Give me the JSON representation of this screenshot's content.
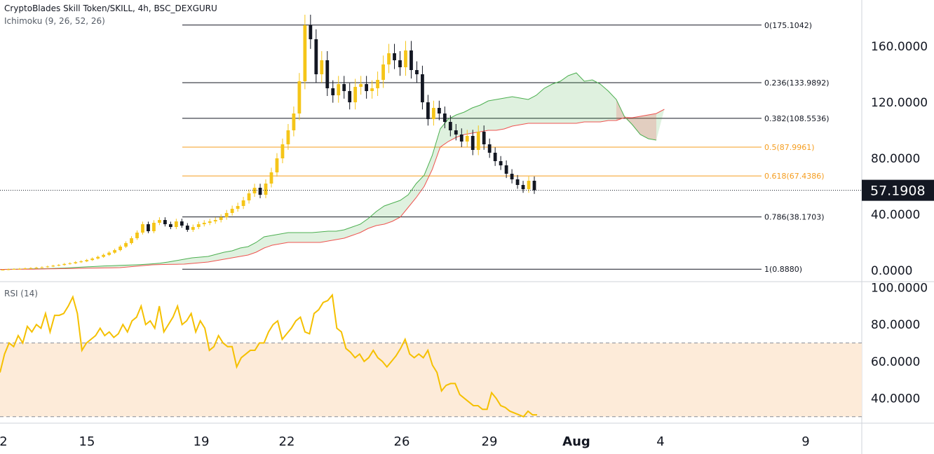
{
  "header": {
    "title": "CryptoBlades Skill Token/SKILL, 4h, BSC_DEXGURU",
    "indicator": "Ichimoku (9, 26, 52, 26)",
    "rsi_label": "RSI (14)"
  },
  "colors": {
    "bull": "#f5c518",
    "bear": "#131722",
    "cloud_green": "#4caf50",
    "cloud_red": "#ef5350",
    "fib_black": "#131722",
    "fib_orange": "#f59d1f",
    "rsi_line": "#f5c000",
    "rsi_band": "#fdebd9"
  },
  "chart_data": [
    {
      "type": "candlestick",
      "title": "CryptoBlades Skill Token/SKILL, 4h, BSC_DEXGURU",
      "last_price": "57.1908",
      "y_ticks": [
        "160.0000",
        "120.0000",
        "80.0000",
        "40.0000",
        "0.0000"
      ],
      "ylim": [
        -6,
        188
      ],
      "x_ticks": [
        "2",
        "15",
        "19",
        "22",
        "26",
        "29",
        "Aug",
        "4",
        "9"
      ],
      "fib_levels": [
        {
          "label": "0(175.1042)",
          "value": 175.1042
        },
        {
          "label": "0.236(133.9892)",
          "value": 133.9892
        },
        {
          "label": "0.382(108.5536)",
          "value": 108.5536
        },
        {
          "label": "0.5(87.9961)",
          "value": 87.9961
        },
        {
          "label": "0.618(67.4386)",
          "value": 67.4386
        },
        {
          "label": "0.786(38.1703)",
          "value": 38.1703
        },
        {
          "label": "1(0.8880)",
          "value": 0.888
        }
      ],
      "closes": [
        0.5,
        0.8,
        1,
        1.2,
        1.5,
        1.7,
        2,
        2.3,
        2.8,
        3.4,
        3.9,
        4.6,
        5.1,
        5.9,
        6.5,
        7.4,
        8.5,
        9.7,
        11.1,
        12.7,
        14.5,
        17,
        19.5,
        23,
        27,
        33,
        28,
        34,
        36,
        33,
        31,
        35,
        32,
        29,
        31,
        33,
        34,
        35,
        36,
        38,
        41,
        44,
        46,
        50,
        55,
        59,
        54,
        62,
        70,
        80,
        90,
        100,
        112,
        135,
        175,
        165,
        140,
        150,
        130,
        125,
        133,
        128,
        120,
        131,
        133,
        128,
        130,
        136,
        147,
        155,
        150,
        145,
        157,
        143,
        140,
        120,
        108,
        116,
        112,
        106,
        100,
        97,
        92,
        96,
        86,
        99,
        90,
        84,
        78,
        75,
        69,
        65,
        61,
        58,
        64,
        57.2
      ],
      "tenkan_kijun_note": "",
      "cloud": {
        "span_a": [
          0.7,
          0.8,
          0.9,
          1,
          1.1,
          1.2,
          1.3,
          1.5,
          1.7,
          2,
          2.3,
          2.6,
          2.9,
          3.2,
          3.4,
          3.6,
          3.8,
          4,
          4.3,
          4.7,
          5.2,
          6,
          7,
          8,
          9,
          9.5,
          10,
          11.5,
          13,
          14,
          16,
          17,
          20,
          24,
          25,
          26,
          27,
          27,
          27,
          27,
          27.5,
          28,
          28,
          29,
          31,
          33,
          37,
          42,
          46,
          48,
          50,
          54,
          62,
          68,
          82,
          101,
          108,
          111,
          113,
          116,
          118,
          121,
          122,
          123,
          124,
          123,
          122,
          125,
          130,
          133,
          135,
          139,
          141,
          135,
          136,
          133,
          128,
          122,
          110,
          104,
          97,
          94,
          93
        ],
        "span_b": [
          0.7,
          0.75,
          0.8,
          0.85,
          0.9,
          1,
          1.1,
          1.2,
          1.3,
          1.4,
          1.5,
          1.6,
          1.7,
          1.8,
          1.9,
          2,
          2.5,
          3,
          3.5,
          4,
          4.2,
          4.3,
          4.4,
          4.5,
          5,
          5.5,
          6,
          7,
          8,
          9,
          10,
          11,
          13,
          16,
          18,
          19,
          20,
          20,
          20,
          20,
          20,
          21,
          22,
          23,
          25,
          27,
          30,
          32,
          33,
          35,
          38,
          45,
          52,
          60,
          72,
          88,
          92,
          95,
          97,
          98,
          99,
          100,
          100,
          101,
          103,
          104,
          105,
          105,
          105,
          105,
          105,
          105,
          105,
          106,
          106,
          106,
          107,
          107,
          109,
          109,
          110,
          111,
          112,
          115
        ]
      }
    },
    {
      "type": "line",
      "title": "RSI (14)",
      "y_ticks": [
        "100.0000",
        "80.0000",
        "60.0000",
        "40.0000"
      ],
      "ylim": [
        28,
        101
      ],
      "bands": [
        30,
        70
      ],
      "values": [
        54,
        64,
        70,
        68,
        74,
        70,
        79,
        76,
        80,
        78,
        86,
        76,
        85,
        85,
        86,
        90,
        95,
        86,
        66,
        70,
        72,
        74,
        78,
        74,
        76,
        73,
        75,
        80,
        76,
        82,
        84,
        90,
        80,
        82,
        78,
        90,
        76,
        80,
        84,
        90,
        80,
        82,
        86,
        76,
        82,
        78,
        66,
        68,
        74,
        70,
        68,
        68,
        57,
        62,
        64,
        66,
        66,
        70,
        70,
        76,
        80,
        82,
        72,
        75,
        78,
        82,
        84,
        76,
        75,
        86,
        88,
        92,
        93,
        96,
        78,
        76,
        67,
        65,
        62,
        64,
        60,
        62,
        66,
        62,
        60,
        57,
        60,
        63,
        67,
        72,
        64,
        62,
        64,
        62,
        66,
        58,
        54,
        44,
        47,
        48,
        48,
        42,
        40,
        38,
        36,
        36,
        34,
        34,
        43,
        40,
        36,
        35,
        33,
        32,
        31,
        30,
        33,
        31,
        31
      ]
    }
  ]
}
